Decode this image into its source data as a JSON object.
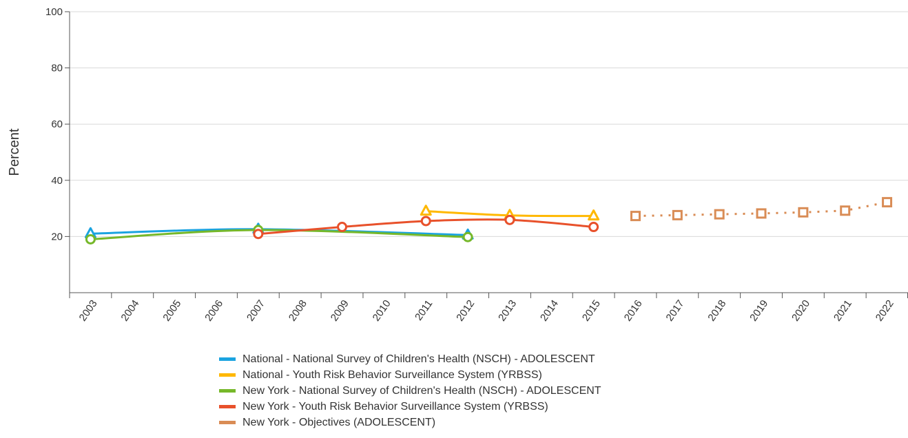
{
  "chart_data": {
    "type": "line",
    "title": "",
    "xlabel": "",
    "ylabel": "Percent",
    "ylim": [
      0,
      100
    ],
    "yticks": [
      20,
      40,
      60,
      80,
      100
    ],
    "grid": true,
    "legend_position": "bottom",
    "categories": [
      "2003",
      "2004",
      "2005",
      "2006",
      "2007",
      "2008",
      "2009",
      "2010",
      "2011",
      "2012",
      "2013",
      "2014",
      "2015",
      "2016",
      "2017",
      "2018",
      "2019",
      "2020",
      "2021",
      "2022"
    ],
    "series": [
      {
        "name": "National - National Survey of Children's Health (NSCH) - ADOLESCENT",
        "color": "#1aa3e0",
        "marker": "triangle",
        "dashed": false,
        "points": [
          {
            "x": "2003",
            "y": 21.0
          },
          {
            "x": "2007",
            "y": 22.6
          },
          {
            "x": "2012",
            "y": 20.5
          }
        ]
      },
      {
        "name": "National - Youth Risk Behavior Surveillance System (YRBSS)",
        "color": "#ffb800",
        "marker": "triangle",
        "dashed": false,
        "points": [
          {
            "x": "2011",
            "y": 29.0
          },
          {
            "x": "2013",
            "y": 27.5
          },
          {
            "x": "2015",
            "y": 27.3
          }
        ]
      },
      {
        "name": "New York - National Survey of Children's Health (NSCH) - ADOLESCENT",
        "color": "#76b82a",
        "marker": "circle",
        "dashed": false,
        "points": [
          {
            "x": "2003",
            "y": 19.0
          },
          {
            "x": "2007",
            "y": 22.3
          },
          {
            "x": "2012",
            "y": 19.8
          }
        ]
      },
      {
        "name": "New York - Youth Risk Behavior Surveillance System (YRBSS)",
        "color": "#e8512b",
        "marker": "circle",
        "dashed": false,
        "points": [
          {
            "x": "2007",
            "y": 20.9
          },
          {
            "x": "2009",
            "y": 23.4
          },
          {
            "x": "2011",
            "y": 25.5
          },
          {
            "x": "2013",
            "y": 25.9
          },
          {
            "x": "2015",
            "y": 23.4
          }
        ]
      },
      {
        "name": "New York - Objectives (ADOLESCENT)",
        "color": "#d98c55",
        "marker": "square",
        "dashed": true,
        "points": [
          {
            "x": "2016",
            "y": 27.3
          },
          {
            "x": "2017",
            "y": 27.6
          },
          {
            "x": "2018",
            "y": 27.9
          },
          {
            "x": "2019",
            "y": 28.2
          },
          {
            "x": "2020",
            "y": 28.6
          },
          {
            "x": "2021",
            "y": 29.2
          },
          {
            "x": "2022",
            "y": 32.2
          }
        ]
      }
    ]
  }
}
